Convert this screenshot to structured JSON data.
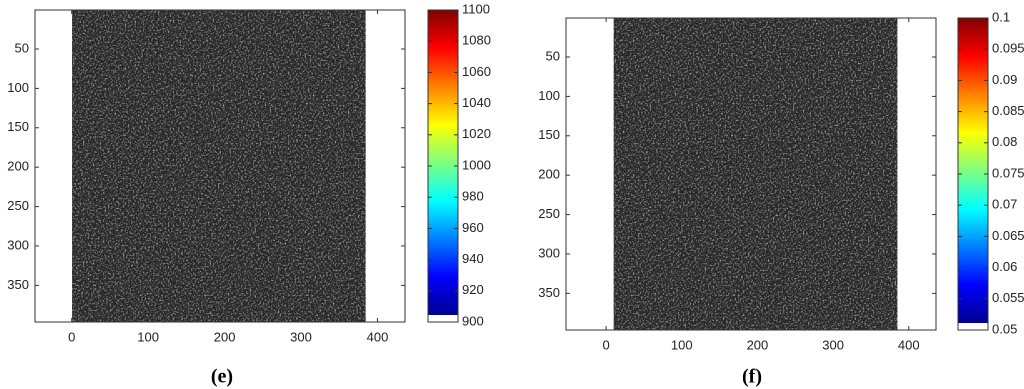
{
  "chart_data": [
    {
      "type": "image",
      "label": "(e)",
      "colormap": "jet",
      "xlim": [
        -48,
        436
      ],
      "ylim": [
        0.5,
        396.5
      ],
      "y_reversed": true,
      "xticks": [
        0,
        100,
        200,
        300,
        400
      ],
      "yticks": [
        50,
        100,
        150,
        200,
        250,
        300,
        350
      ],
      "image_xlim": [
        0.5,
        384.5
      ],
      "clim": [
        900,
        1100
      ],
      "cticks": [
        900,
        920,
        940,
        960,
        980,
        1000,
        1020,
        1040,
        1060,
        1080,
        1100
      ]
    },
    {
      "type": "image",
      "label": "(f)",
      "colormap": "jet",
      "xlim": [
        -53,
        436
      ],
      "ylim": [
        0.5,
        396.5
      ],
      "y_reversed": true,
      "xticks": [
        0,
        100,
        200,
        300,
        400
      ],
      "yticks": [
        50,
        100,
        150,
        200,
        250,
        300,
        350
      ],
      "image_xlim": [
        10,
        385
      ],
      "clim": [
        0.05,
        0.1
      ],
      "cticks": [
        0.05,
        0.055,
        0.06,
        0.065,
        0.07,
        0.075,
        0.08,
        0.085,
        0.09,
        0.095,
        0.1
      ]
    }
  ]
}
